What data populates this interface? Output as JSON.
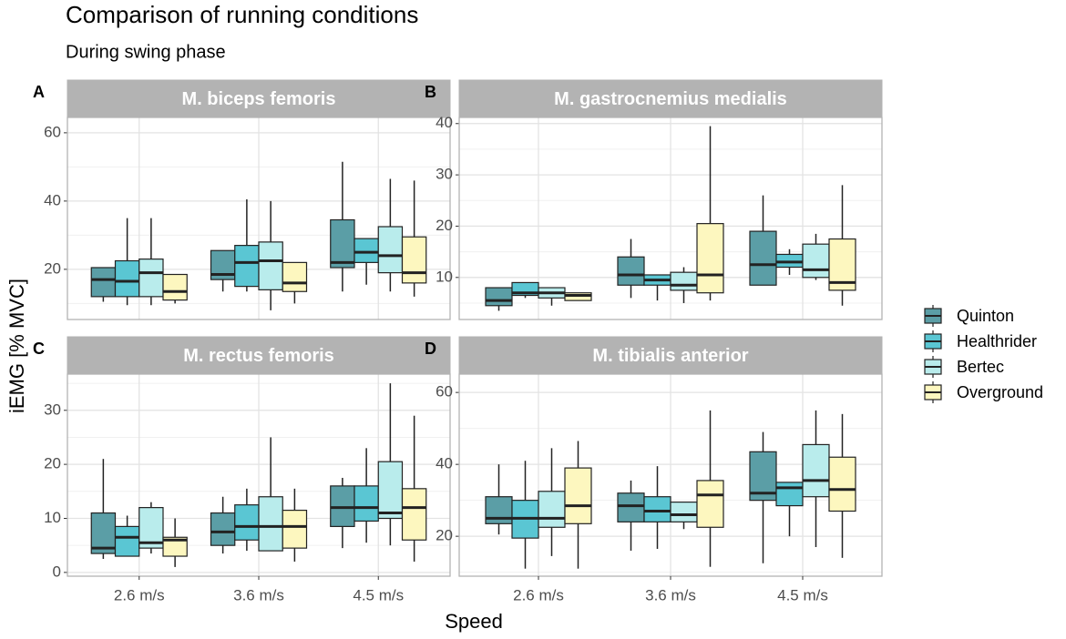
{
  "title": "Comparison of running conditions",
  "subtitle": "During swing phase",
  "xlabel": "Speed",
  "ylabel": "iEMG [% MVC]",
  "categories": [
    "2.6 m/s",
    "3.6 m/s",
    "4.5 m/s"
  ],
  "series": [
    {
      "name": "Quinton",
      "color": "#5b9ea6"
    },
    {
      "name": "Healthrider",
      "color": "#5ac6d3"
    },
    {
      "name": "Bertec",
      "color": "#b9ecec"
    },
    {
      "name": "Overground",
      "color": "#fdf7bf"
    }
  ],
  "chart_data": [
    {
      "type": "box",
      "tag": "A",
      "title": "M. biceps femoris",
      "ylim": [
        5.3,
        64.5
      ],
      "yticks": [
        20,
        40,
        60
      ],
      "grid": true,
      "values": [
        [
          {
            "min": 10.5,
            "q1": 12,
            "median": 17,
            "q3": 20.5,
            "max": 20.5
          },
          {
            "min": 13.5,
            "q1": 17,
            "median": 18.5,
            "q3": 25.5,
            "max": 25.5
          },
          {
            "min": 13.5,
            "q1": 20.5,
            "median": 22,
            "q3": 34.5,
            "max": 51.5
          }
        ],
        [
          {
            "min": 9.5,
            "q1": 12,
            "median": 16.5,
            "q3": 22.5,
            "max": 35
          },
          {
            "min": 13.5,
            "q1": 15,
            "median": 22,
            "q3": 27,
            "max": 40.5
          },
          {
            "min": 15.5,
            "q1": 22,
            "median": 25,
            "q3": 29,
            "max": 29
          }
        ],
        [
          {
            "min": 9.5,
            "q1": 12,
            "median": 19,
            "q3": 23,
            "max": 35
          },
          {
            "min": 8,
            "q1": 14,
            "median": 22.5,
            "q3": 28,
            "max": 40
          },
          {
            "min": 13.5,
            "q1": 19,
            "median": 24,
            "q3": 32.5,
            "max": 46.5
          }
        ],
        [
          {
            "min": 10,
            "q1": 11,
            "median": 13.5,
            "q3": 18.5,
            "max": 18.5
          },
          {
            "min": 10,
            "q1": 13.5,
            "median": 16,
            "q3": 22,
            "max": 22
          },
          {
            "min": 12,
            "q1": 16,
            "median": 19,
            "q3": 29.5,
            "max": 46
          }
        ]
      ]
    },
    {
      "type": "box",
      "tag": "B",
      "title": "M. gastrocnemius medialis",
      "ylim": [
        1.8,
        41.2
      ],
      "yticks": [
        10,
        20,
        30,
        40
      ],
      "grid": true,
      "values": [
        [
          {
            "min": 3.5,
            "q1": 4.5,
            "median": 5.5,
            "q3": 8,
            "max": 8
          },
          {
            "min": 6,
            "q1": 8.5,
            "median": 10.5,
            "q3": 14,
            "max": 17.5
          },
          {
            "min": 8.5,
            "q1": 8.5,
            "median": 12.5,
            "q3": 19,
            "max": 26
          }
        ],
        [
          {
            "min": 6,
            "q1": 6.5,
            "median": 7,
            "q3": 9,
            "max": 9
          },
          {
            "min": 5.5,
            "q1": 8.5,
            "median": 9.5,
            "q3": 10.5,
            "max": 10.5
          },
          {
            "min": 10.5,
            "q1": 12,
            "median": 13,
            "q3": 14.5,
            "max": 15.5
          }
        ],
        [
          {
            "min": 4.5,
            "q1": 6,
            "median": 7,
            "q3": 8,
            "max": 8
          },
          {
            "min": 5,
            "q1": 7.5,
            "median": 8.5,
            "q3": 11,
            "max": 12
          },
          {
            "min": 9.5,
            "q1": 10,
            "median": 11.5,
            "q3": 16.5,
            "max": 18.5
          }
        ],
        [
          {
            "min": 5.5,
            "q1": 5.5,
            "median": 6.5,
            "q3": 7,
            "max": 7
          },
          {
            "min": 5.5,
            "q1": 7,
            "median": 10.5,
            "q3": 20.5,
            "max": 39.5
          },
          {
            "min": 4.5,
            "q1": 7.5,
            "median": 9,
            "q3": 17.5,
            "max": 28
          }
        ]
      ]
    },
    {
      "type": "box",
      "tag": "C",
      "title": "M. rectus femoris",
      "ylim": [
        -0.7,
        36.7
      ],
      "yticks": [
        0,
        10,
        20,
        30
      ],
      "grid": true,
      "values": [
        [
          {
            "min": 2.5,
            "q1": 3.5,
            "median": 4.5,
            "q3": 11,
            "max": 21
          },
          {
            "min": 3.5,
            "q1": 5,
            "median": 7.5,
            "q3": 11,
            "max": 14
          },
          {
            "min": 4.5,
            "q1": 8.5,
            "median": 12,
            "q3": 16,
            "max": 17.5
          }
        ],
        [
          {
            "min": 3,
            "q1": 3,
            "median": 6.5,
            "q3": 8.5,
            "max": 10.5
          },
          {
            "min": 4,
            "q1": 6,
            "median": 8.5,
            "q3": 12.5,
            "max": 15.5
          },
          {
            "min": 5.5,
            "q1": 9.5,
            "median": 12,
            "q3": 16,
            "max": 23
          }
        ],
        [
          {
            "min": 3.5,
            "q1": 4.5,
            "median": 5.5,
            "q3": 12,
            "max": 13
          },
          {
            "min": 4,
            "q1": 4,
            "median": 8.5,
            "q3": 14,
            "max": 25
          },
          {
            "min": 5,
            "q1": 10,
            "median": 11,
            "q3": 20.5,
            "max": 35
          }
        ],
        [
          {
            "min": 1,
            "q1": 3,
            "median": 6,
            "q3": 6.5,
            "max": 10
          },
          {
            "min": 2,
            "q1": 4.5,
            "median": 8.5,
            "q3": 11.5,
            "max": 15.5
          },
          {
            "min": 2,
            "q1": 6,
            "median": 12,
            "q3": 15.5,
            "max": 29
          }
        ]
      ]
    },
    {
      "type": "box",
      "tag": "D",
      "title": "M. tibialis anterior",
      "ylim": [
        8.9,
        65.1
      ],
      "yticks": [
        20,
        40,
        60
      ],
      "grid": true,
      "values": [
        [
          {
            "min": 20.5,
            "q1": 23.5,
            "median": 25,
            "q3": 31,
            "max": 40
          },
          {
            "min": 16,
            "q1": 24,
            "median": 28.5,
            "q3": 32,
            "max": 35.5
          },
          {
            "min": 12.5,
            "q1": 30,
            "median": 32,
            "q3": 43.5,
            "max": 49
          }
        ],
        [
          {
            "min": 11,
            "q1": 19.5,
            "median": 25,
            "q3": 30,
            "max": 41
          },
          {
            "min": 16.5,
            "q1": 24,
            "median": 27,
            "q3": 31,
            "max": 39.5
          },
          {
            "min": 20,
            "q1": 28.5,
            "median": 33.5,
            "q3": 35,
            "max": 35
          }
        ],
        [
          {
            "min": 14.5,
            "q1": 22.5,
            "median": 25,
            "q3": 32.5,
            "max": 44.5
          },
          {
            "min": 22,
            "q1": 24,
            "median": 26,
            "q3": 29.5,
            "max": 29.5
          },
          {
            "min": 17,
            "q1": 31,
            "median": 35.5,
            "q3": 45.5,
            "max": 55
          }
        ],
        [
          {
            "min": 11,
            "q1": 23.5,
            "median": 28.5,
            "q3": 39,
            "max": 46.5
          },
          {
            "min": 11.5,
            "q1": 22.5,
            "median": 31.5,
            "q3": 35.5,
            "max": 55
          },
          {
            "min": 14,
            "q1": 27,
            "median": 33,
            "q3": 42,
            "max": 54
          }
        ]
      ]
    }
  ]
}
